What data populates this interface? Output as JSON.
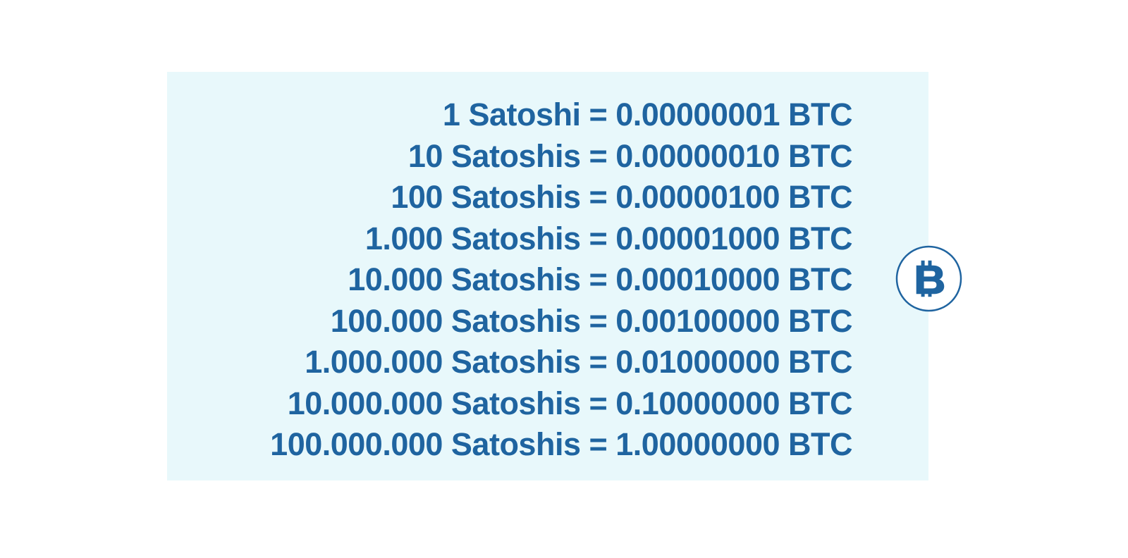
{
  "conversion_rows": [
    "1 Satoshi = 0.00000001 BTC",
    "10 Satoshis = 0.00000010 BTC",
    "100 Satoshis = 0.00000100 BTC",
    "1.000 Satoshis = 0.00001000 BTC",
    "10.000 Satoshis = 0.00010000 BTC",
    "100.000 Satoshis = 0.00100000 BTC",
    "1.000.000 Satoshis = 0.01000000 BTC",
    "10.000.000 Satoshis = 0.10000000 BTC",
    "100.000.000 Satoshis = 1.00000000 BTC"
  ],
  "icon": "bitcoin-icon",
  "colors": {
    "text": "#1f64a0",
    "panel_background": "#e8f8fb",
    "coin_fill": "#ffffff",
    "coin_stroke": "#1f64a0"
  }
}
